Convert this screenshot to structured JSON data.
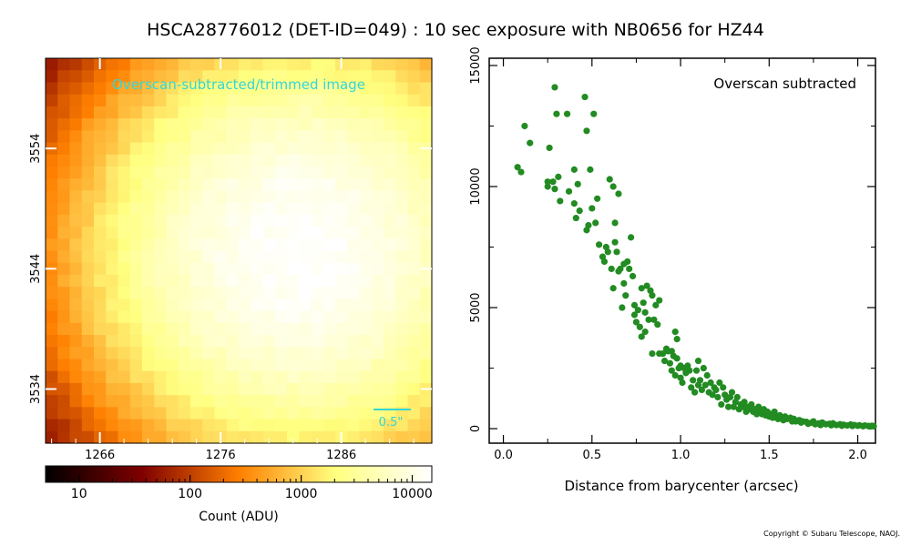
{
  "title": "HSCA28776012 (DET-ID=049) :  10 sec exposure with NB0656 for HZ44",
  "copyright": "Copyright © Subaru Telescope, NAOJ.",
  "colors": {
    "image_annotation": "#33d6d6",
    "scatter_points": "#228b22"
  },
  "chart_data": [
    {
      "type": "heatmap",
      "annotation": "Overscan-subtracted/trimmed image",
      "scale_bar_label": "0.5\"",
      "colormap": "afmhot",
      "x_ticks": [
        "1266",
        "1276",
        "1286"
      ],
      "y_ticks": [
        "3534",
        "3544",
        "3554"
      ],
      "xlim": [
        1261.5,
        1293.5
      ],
      "ylim": [
        3529.5,
        3561.5
      ],
      "peak_center": [
        1282.5,
        3545.5
      ],
      "peak_counts": 15000,
      "colorbar": {
        "label": "Count (ADU)",
        "scale": "log",
        "range": [
          5,
          15000
        ],
        "tick_labels": [
          "10",
          "100",
          "1000",
          "10000"
        ]
      }
    },
    {
      "type": "scatter",
      "annotation": "Overscan subtracted",
      "xlabel": "Distance from barycenter (arcsec)",
      "ylabel": "",
      "xlim": [
        -0.08,
        2.1
      ],
      "ylim": [
        -600,
        15300
      ],
      "x_ticks": [
        "0.0",
        "0.5",
        "1.0",
        "1.5",
        "2.0"
      ],
      "y_ticks": [
        "0",
        "5000",
        "10000",
        "15000"
      ],
      "points": [
        [
          0.08,
          10800
        ],
        [
          0.1,
          10600
        ],
        [
          0.12,
          12500
        ],
        [
          0.15,
          11800
        ],
        [
          0.25,
          10200
        ],
        [
          0.25,
          10000
        ],
        [
          0.26,
          11600
        ],
        [
          0.28,
          10200
        ],
        [
          0.29,
          9900
        ],
        [
          0.29,
          14100
        ],
        [
          0.3,
          13000
        ],
        [
          0.31,
          10400
        ],
        [
          0.32,
          9400
        ],
        [
          0.36,
          13000
        ],
        [
          0.37,
          9800
        ],
        [
          0.4,
          10700
        ],
        [
          0.4,
          9300
        ],
        [
          0.41,
          8700
        ],
        [
          0.42,
          10100
        ],
        [
          0.43,
          9000
        ],
        [
          0.46,
          13700
        ],
        [
          0.47,
          12300
        ],
        [
          0.48,
          8400
        ],
        [
          0.47,
          8200
        ],
        [
          0.49,
          10700
        ],
        [
          0.5,
          9100
        ],
        [
          0.51,
          13000
        ],
        [
          0.52,
          8500
        ],
        [
          0.53,
          9500
        ],
        [
          0.54,
          7600
        ],
        [
          0.56,
          7100
        ],
        [
          0.57,
          6900
        ],
        [
          0.58,
          7500
        ],
        [
          0.59,
          7300
        ],
        [
          0.6,
          10300
        ],
        [
          0.61,
          6600
        ],
        [
          0.62,
          10000
        ],
        [
          0.62,
          5800
        ],
        [
          0.63,
          8500
        ],
        [
          0.63,
          7700
        ],
        [
          0.64,
          7300
        ],
        [
          0.65,
          9700
        ],
        [
          0.65,
          6500
        ],
        [
          0.66,
          6600
        ],
        [
          0.67,
          5000
        ],
        [
          0.68,
          6800
        ],
        [
          0.68,
          6000
        ],
        [
          0.69,
          5500
        ],
        [
          0.7,
          6900
        ],
        [
          0.71,
          6600
        ],
        [
          0.72,
          7900
        ],
        [
          0.73,
          6300
        ],
        [
          0.74,
          4700
        ],
        [
          0.74,
          5100
        ],
        [
          0.75,
          4400
        ],
        [
          0.76,
          4900
        ],
        [
          0.77,
          4200
        ],
        [
          0.78,
          5800
        ],
        [
          0.78,
          3800
        ],
        [
          0.79,
          5200
        ],
        [
          0.8,
          4800
        ],
        [
          0.8,
          4000
        ],
        [
          0.81,
          5900
        ],
        [
          0.82,
          4500
        ],
        [
          0.83,
          5700
        ],
        [
          0.84,
          3100
        ],
        [
          0.84,
          5500
        ],
        [
          0.85,
          4500
        ],
        [
          0.86,
          5100
        ],
        [
          0.87,
          4300
        ],
        [
          0.88,
          3100
        ],
        [
          0.88,
          5300
        ],
        [
          0.9,
          3100
        ],
        [
          0.91,
          2800
        ],
        [
          0.92,
          3300
        ],
        [
          0.93,
          3200
        ],
        [
          0.94,
          2700
        ],
        [
          0.95,
          2400
        ],
        [
          0.95,
          3200
        ],
        [
          0.96,
          3000
        ],
        [
          0.97,
          4000
        ],
        [
          0.97,
          2200
        ],
        [
          0.98,
          3700
        ],
        [
          0.98,
          2900
        ],
        [
          0.99,
          2500
        ],
        [
          1.0,
          2100
        ],
        [
          1.0,
          2600
        ],
        [
          1.01,
          1900
        ],
        [
          1.02,
          2500
        ],
        [
          1.03,
          2300
        ],
        [
          1.04,
          2600
        ],
        [
          1.05,
          2400
        ],
        [
          1.06,
          1700
        ],
        [
          1.07,
          2000
        ],
        [
          1.08,
          1500
        ],
        [
          1.09,
          2400
        ],
        [
          1.1,
          1800
        ],
        [
          1.1,
          2800
        ],
        [
          1.11,
          2000
        ],
        [
          1.12,
          1600
        ],
        [
          1.13,
          2500
        ],
        [
          1.14,
          1800
        ],
        [
          1.15,
          2200
        ],
        [
          1.16,
          1500
        ],
        [
          1.17,
          1900
        ],
        [
          1.18,
          1400
        ],
        [
          1.19,
          1700
        ],
        [
          1.2,
          1600
        ],
        [
          1.21,
          1300
        ],
        [
          1.22,
          1900
        ],
        [
          1.23,
          1000
        ],
        [
          1.24,
          1700
        ],
        [
          1.25,
          1400
        ],
        [
          1.26,
          1200
        ],
        [
          1.27,
          900
        ],
        [
          1.28,
          1300
        ],
        [
          1.29,
          1500
        ],
        [
          1.3,
          900
        ],
        [
          1.31,
          1100
        ],
        [
          1.32,
          1300
        ],
        [
          1.33,
          800
        ],
        [
          1.34,
          1000
        ],
        [
          1.35,
          900
        ],
        [
          1.36,
          1100
        ],
        [
          1.37,
          700
        ],
        [
          1.38,
          900
        ],
        [
          1.39,
          800
        ],
        [
          1.4,
          1000
        ],
        [
          1.41,
          700
        ],
        [
          1.42,
          800
        ],
        [
          1.43,
          600
        ],
        [
          1.44,
          900
        ],
        [
          1.45,
          700
        ],
        [
          1.46,
          600
        ],
        [
          1.47,
          800
        ],
        [
          1.48,
          550
        ],
        [
          1.49,
          700
        ],
        [
          1.5,
          500
        ],
        [
          1.51,
          600
        ],
        [
          1.52,
          450
        ],
        [
          1.53,
          700
        ],
        [
          1.54,
          500
        ],
        [
          1.55,
          400
        ],
        [
          1.56,
          550
        ],
        [
          1.57,
          450
        ],
        [
          1.58,
          350
        ],
        [
          1.59,
          500
        ],
        [
          1.6,
          400
        ],
        [
          1.62,
          450
        ],
        [
          1.63,
          300
        ],
        [
          1.64,
          400
        ],
        [
          1.65,
          300
        ],
        [
          1.67,
          350
        ],
        [
          1.68,
          250
        ],
        [
          1.69,
          300
        ],
        [
          1.71,
          280
        ],
        [
          1.72,
          200
        ],
        [
          1.74,
          250
        ],
        [
          1.75,
          300
        ],
        [
          1.76,
          180
        ],
        [
          1.78,
          220
        ],
        [
          1.79,
          150
        ],
        [
          1.8,
          250
        ],
        [
          1.82,
          180
        ],
        [
          1.84,
          200
        ],
        [
          1.85,
          140
        ],
        [
          1.86,
          220
        ],
        [
          1.88,
          150
        ],
        [
          1.9,
          180
        ],
        [
          1.91,
          120
        ],
        [
          1.92,
          160
        ],
        [
          1.94,
          130
        ],
        [
          1.96,
          170
        ],
        [
          1.97,
          110
        ],
        [
          1.98,
          150
        ],
        [
          2.0,
          120
        ],
        [
          2.01,
          140
        ],
        [
          2.03,
          100
        ],
        [
          2.04,
          130
        ],
        [
          2.06,
          110
        ],
        [
          2.07,
          90
        ],
        [
          2.08,
          120
        ],
        [
          2.09,
          100
        ]
      ]
    }
  ]
}
